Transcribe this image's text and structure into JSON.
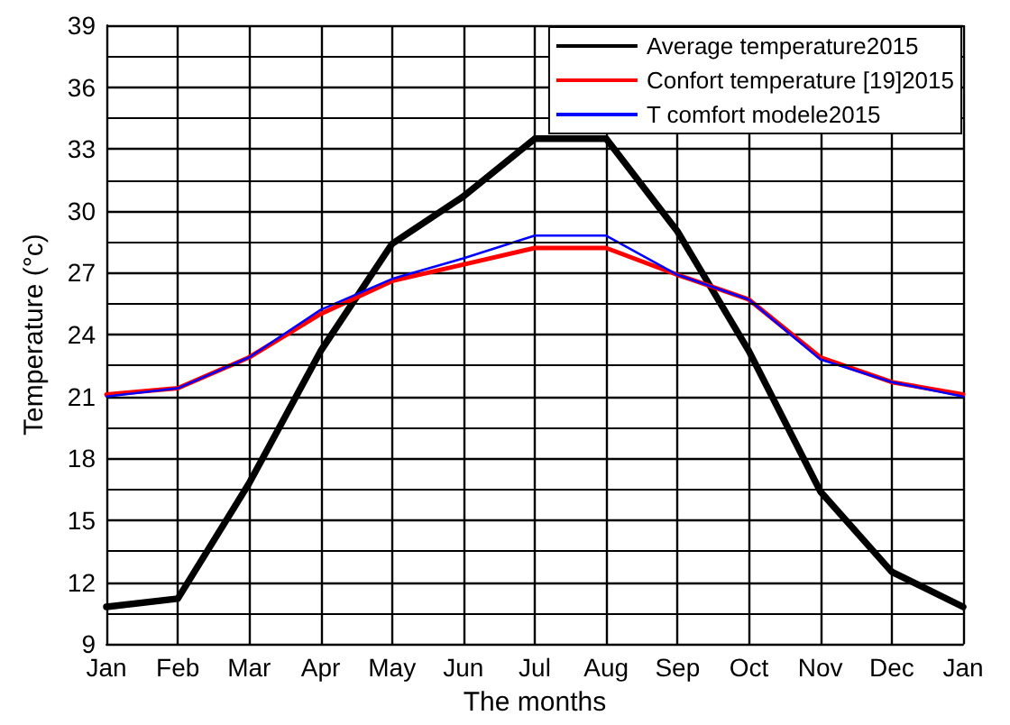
{
  "chart_data": {
    "type": "line",
    "xlabel": "The months",
    "ylabel": "Temperature (°c)",
    "categories": [
      "Jan",
      "Feb",
      "Mar",
      "Apr",
      "May",
      "Jun",
      "Jul",
      "Aug",
      "Sep",
      "Oct",
      "Nov",
      "Dec",
      "Jan"
    ],
    "series": [
      {
        "name": "Average temperature2015",
        "color": "#000000",
        "values": [
          10.8,
          11.2,
          16.8,
          23.2,
          28.4,
          30.7,
          33.5,
          33.5,
          29.0,
          23.2,
          16.4,
          12.5,
          10.8
        ]
      },
      {
        "name": "Confort temperature [19]2015",
        "color": "#ff0000",
        "values": [
          21.1,
          21.4,
          22.9,
          25.0,
          26.6,
          27.4,
          28.2,
          28.2,
          26.9,
          25.7,
          22.9,
          21.7,
          21.1
        ]
      },
      {
        "name": "T comfort modele2015",
        "color": "#0000ff",
        "values": [
          21.0,
          21.4,
          22.9,
          25.2,
          26.7,
          27.7,
          28.8,
          28.8,
          26.9,
          25.7,
          22.8,
          21.7,
          21.0
        ]
      }
    ],
    "ylim": [
      9,
      39
    ],
    "yticks": [
      9,
      12,
      15,
      18,
      21,
      24,
      27,
      30,
      33,
      36,
      39
    ],
    "grid": true,
    "legend": "top right",
    "marker": "none",
    "line_style": "solid"
  }
}
